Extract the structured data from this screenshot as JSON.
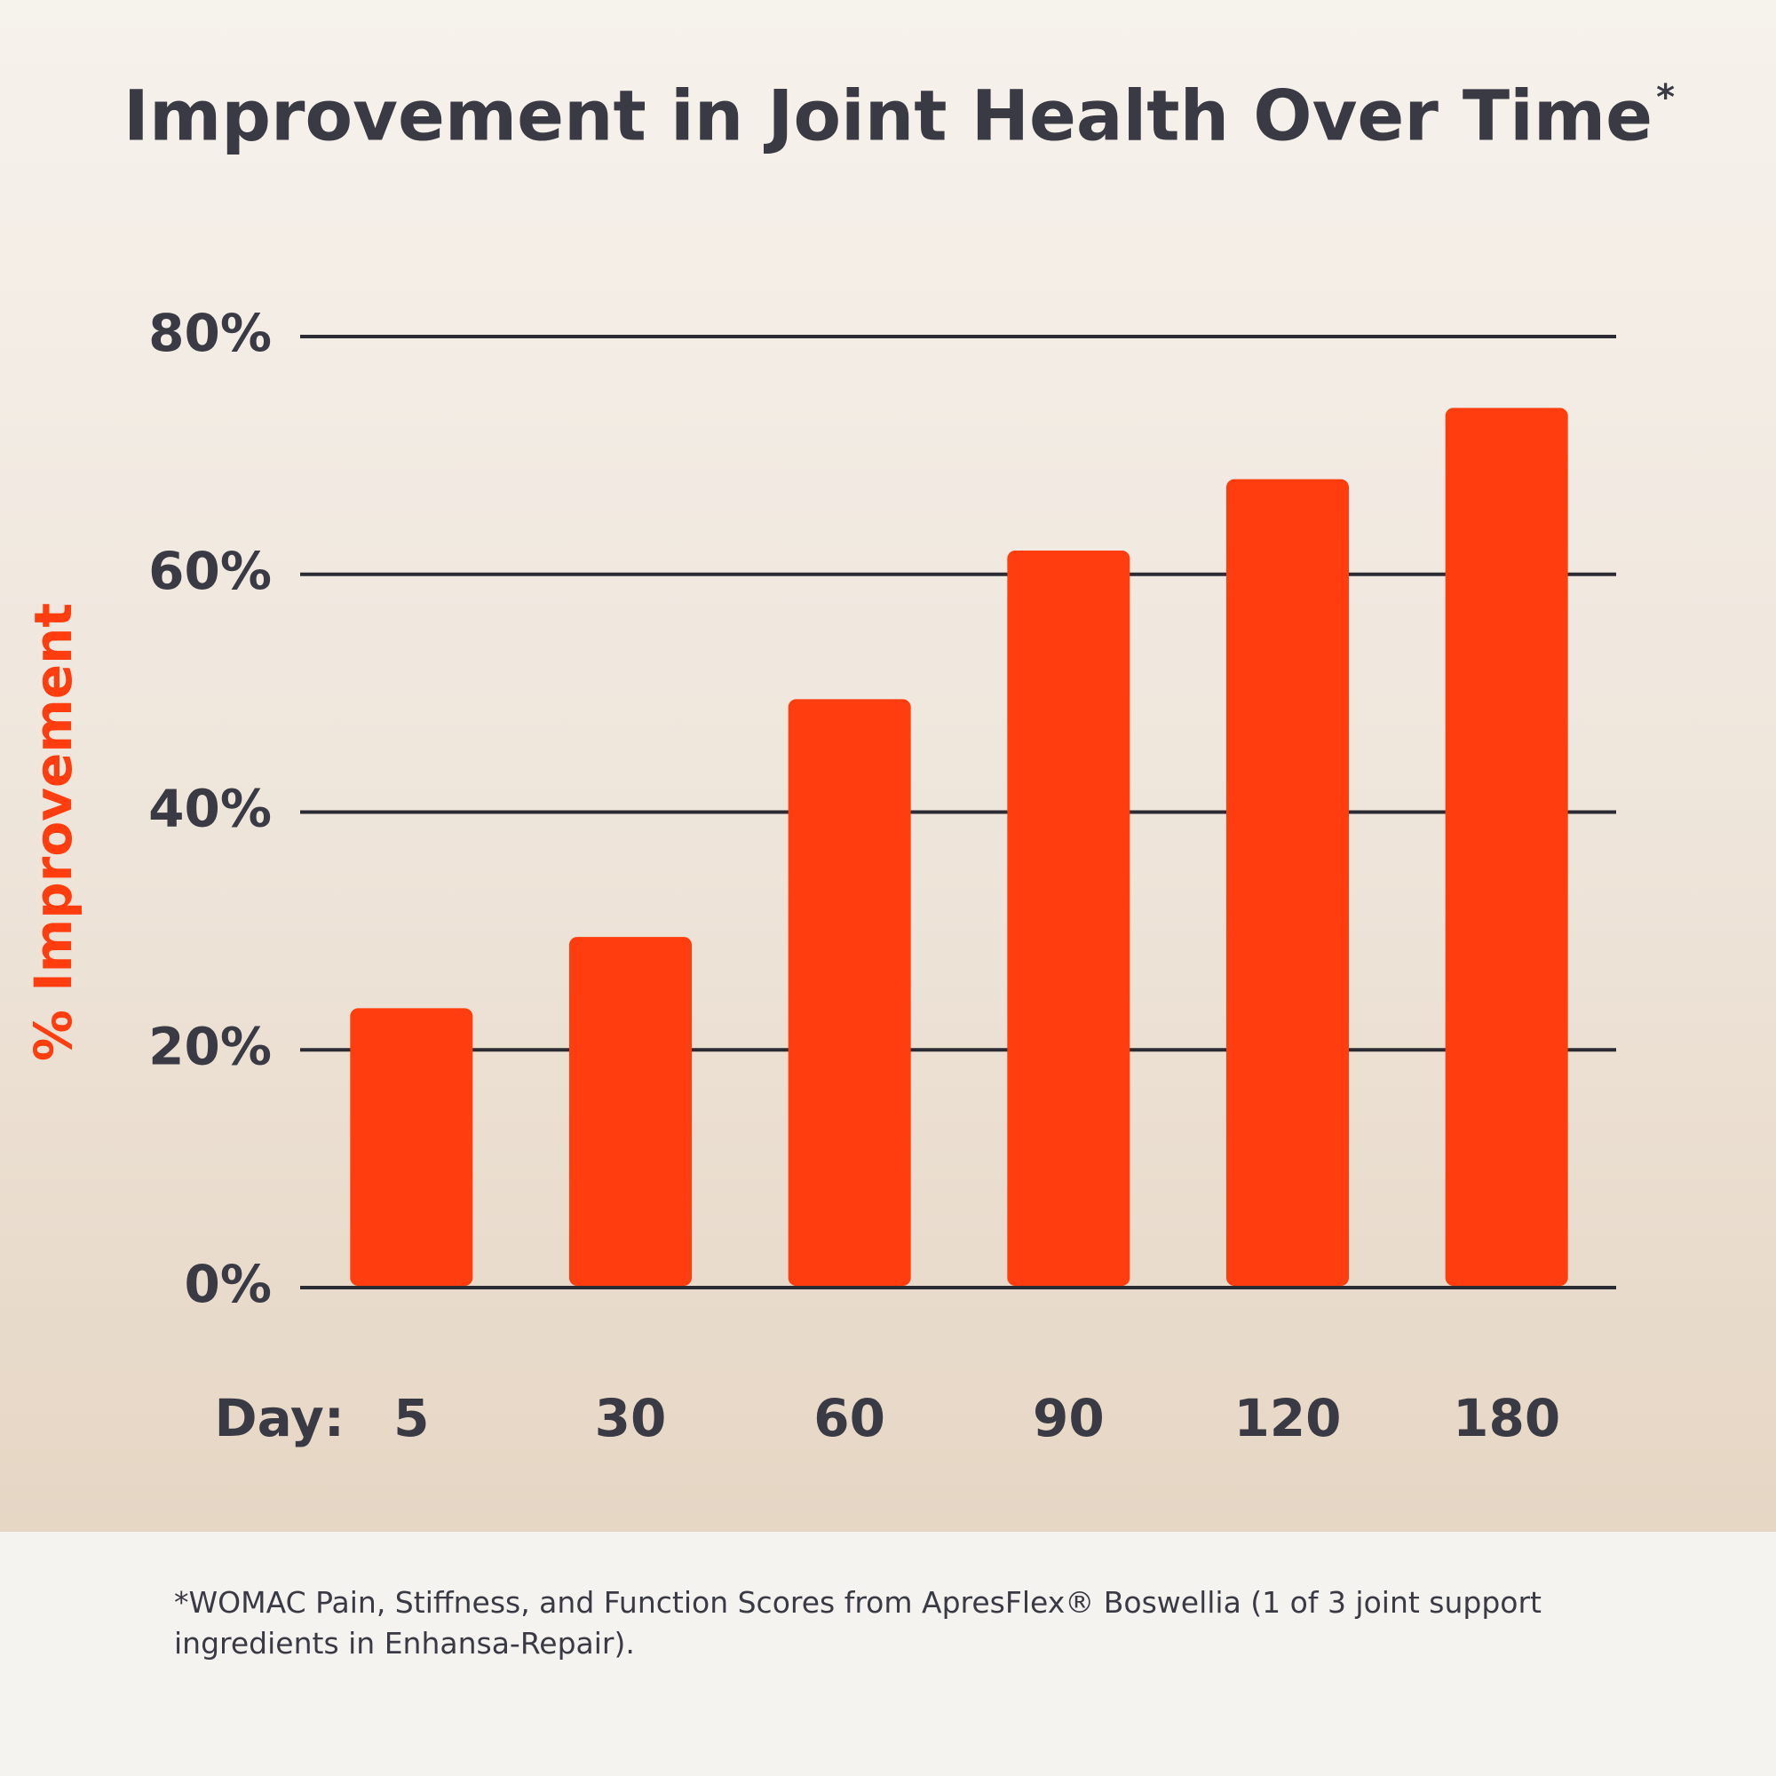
{
  "chart_data": {
    "type": "bar",
    "title": "Improvement in Joint Health Over Time",
    "title_mark": "*",
    "y_label": "% Improvement",
    "x_label": "Day:",
    "categories": [
      "5",
      "30",
      "60",
      "90",
      "120",
      "180"
    ],
    "values": [
      23.5,
      29.5,
      49.5,
      62,
      68,
      74
    ],
    "color": "#ff3d0f",
    "ylim": [
      0,
      80
    ],
    "yticks": [
      {
        "value": 0,
        "label": "0%"
      },
      {
        "value": 20,
        "label": "20%"
      },
      {
        "value": 40,
        "label": "40%"
      },
      {
        "value": 60,
        "label": "60%"
      },
      {
        "value": 80,
        "label": "80%"
      }
    ],
    "grid": true,
    "footnote": "*WOMAC Pain, Stiffness, and Function Scores from ApresFlex® Boswellia (1 of 3 joint support ingredients in Enhansa-Repair)."
  }
}
